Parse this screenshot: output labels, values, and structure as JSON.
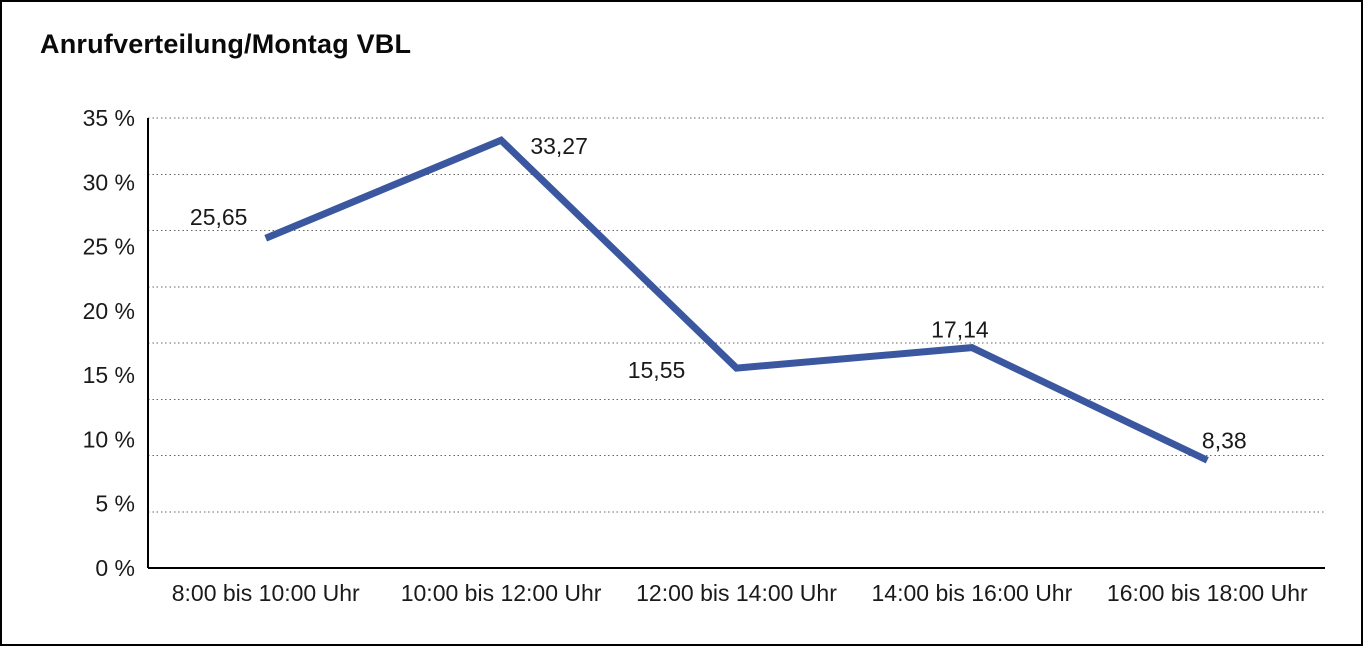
{
  "title": "Anrufverteilung/Montag VBL",
  "colors": {
    "line": "#3A57A0",
    "grid": "#666666",
    "axis": "#000000",
    "text": "#1a1a1a",
    "background": "#ffffff",
    "frame_border": "#000000"
  },
  "chart_data": {
    "type": "line",
    "title": "Anrufverteilung/Montag VBL",
    "categories": [
      "8:00 bis 10:00 Uhr",
      "10:00 bis 12:00 Uhr",
      "12:00 bis 14:00 Uhr",
      "14:00 bis 16:00 Uhr",
      "16:00 bis 18:00 Uhr"
    ],
    "values": [
      25.65,
      33.27,
      15.55,
      17.14,
      8.38
    ],
    "value_labels": [
      "25,65",
      "33,27",
      "15,55",
      "17,14",
      "8,38"
    ],
    "xlabel": "",
    "ylabel": "",
    "ylim": [
      0,
      35
    ],
    "ytick_values": [
      0,
      5,
      10,
      15,
      20,
      25,
      30,
      35
    ],
    "ytick_labels": [
      "0 %",
      "5 %",
      "10 %",
      "15 %",
      "20 %",
      "25 %",
      "30 %",
      "35 %"
    ],
    "grid": "horizontal-dotted",
    "grid_divisions": 8,
    "legend": "none"
  }
}
